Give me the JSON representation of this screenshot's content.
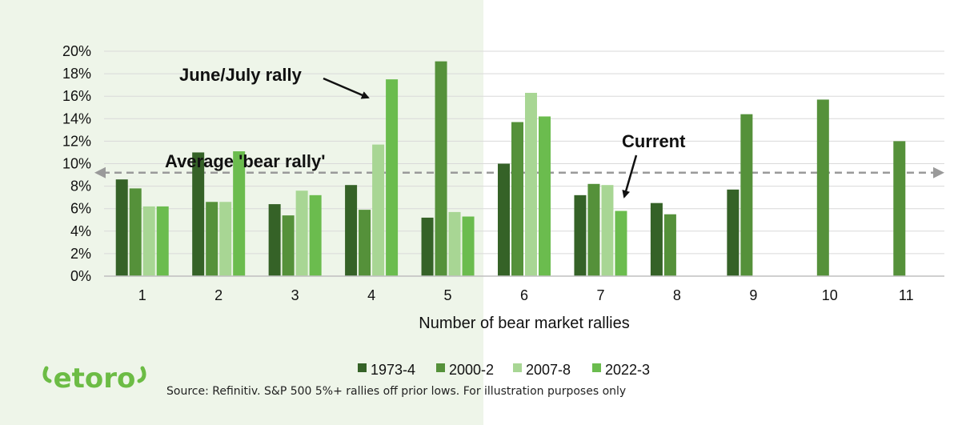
{
  "colors": {
    "s1973": "#356227",
    "s2000": "#55913a",
    "s2007": "#a8d694",
    "s2022": "#6bbc4e",
    "grid": "#d9d9d9",
    "avg_line": "#9a9a9a",
    "brand": "#6cbc45"
  },
  "logo_text": "etoro",
  "source": "Source: Refinitiv. S&P 500 5%+ rallies off prior lows. For illustration purposes only",
  "chart_data": {
    "type": "bar",
    "xlabel": "Number of bear market rallies",
    "ylabel": "",
    "ylim": [
      0,
      20
    ],
    "yticks": [
      "0%",
      "2%",
      "4%",
      "6%",
      "8%",
      "10%",
      "12%",
      "14%",
      "16%",
      "18%",
      "20%"
    ],
    "categories": [
      "1",
      "2",
      "3",
      "4",
      "5",
      "6",
      "7",
      "8",
      "9",
      "10",
      "11"
    ],
    "series": [
      {
        "name": "1973-4",
        "values": [
          8.6,
          11.0,
          6.4,
          8.1,
          5.2,
          10.0,
          7.2,
          6.5,
          7.7,
          null,
          null
        ]
      },
      {
        "name": "2000-2",
        "values": [
          7.8,
          6.6,
          5.4,
          5.9,
          19.1,
          13.7,
          8.2,
          5.5,
          14.4,
          15.7,
          12.0
        ]
      },
      {
        "name": "2007-8",
        "values": [
          6.2,
          6.6,
          7.6,
          11.7,
          5.7,
          16.3,
          8.1,
          null,
          null,
          null,
          null
        ]
      },
      {
        "name": "2022-3",
        "values": [
          6.2,
          11.1,
          7.2,
          17.5,
          5.3,
          14.2,
          5.8,
          null,
          null,
          null,
          null
        ]
      }
    ],
    "average_line": {
      "label": "Average 'bear rally'",
      "value": 9.2
    },
    "annotations": [
      {
        "text": "June/July rally",
        "target_category": "4"
      },
      {
        "text": "Current",
        "target_category": "7"
      }
    ],
    "legend_position": "bottom",
    "grid": true
  }
}
